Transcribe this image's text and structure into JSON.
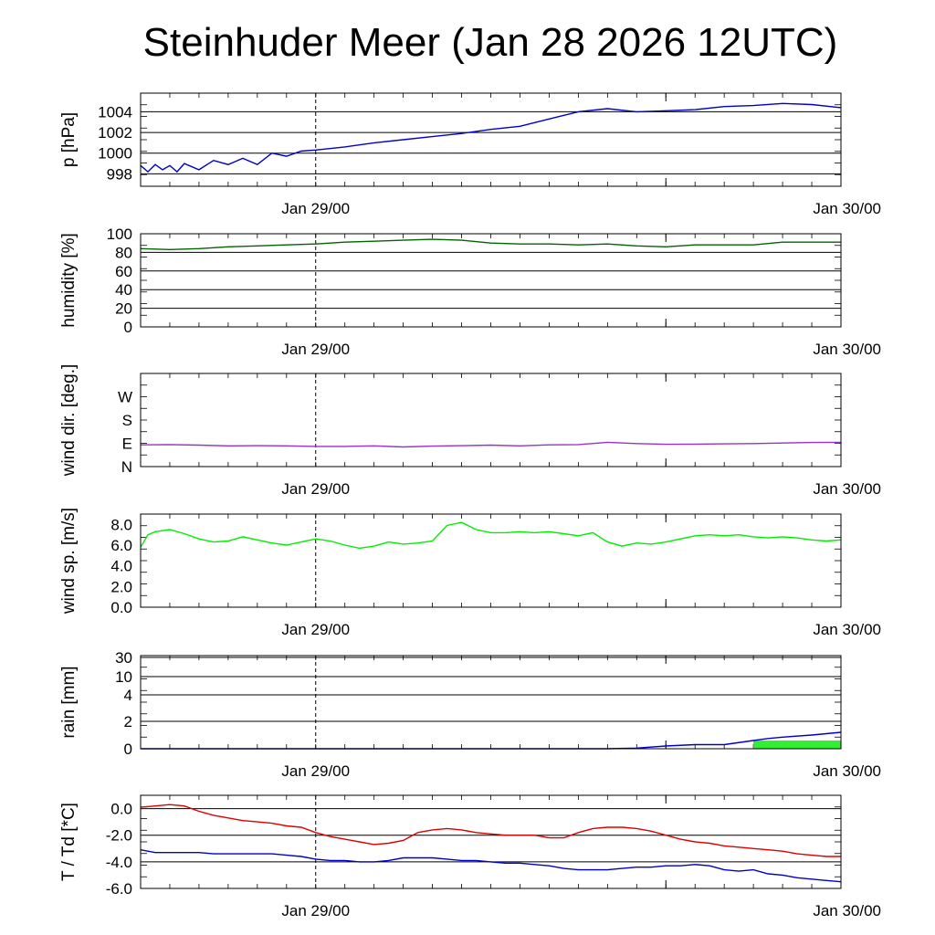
{
  "title": "Steinhuder Meer (Jan 28 2026 12UTC)",
  "chart_data": [
    {
      "type": "line",
      "ylabel": "p [hPa]",
      "yticks": [
        998,
        1000,
        1002,
        1004
      ],
      "ylim": [
        996.8,
        1005.8
      ],
      "hgrid": [
        998,
        1000,
        1002,
        1004
      ],
      "xticklabels": [
        "Jan 29/00",
        "Jan 30/00"
      ],
      "x_hours": [
        0,
        0.5,
        1,
        1.5,
        2,
        2.5,
        3,
        4,
        5,
        6,
        7,
        8,
        9,
        10,
        11,
        12,
        14,
        16,
        18,
        20,
        22,
        24,
        26,
        28,
        30,
        32,
        34,
        36,
        38,
        40,
        42,
        44,
        46,
        48
      ],
      "series": [
        {
          "color": "#0000cc",
          "values": [
            998.8,
            998.2,
            998.9,
            998.4,
            998.8,
            998.2,
            999.0,
            998.4,
            999.3,
            998.9,
            999.5,
            998.9,
            1000.0,
            999.7,
            1000.2,
            1000.3,
            1000.6,
            1001.0,
            1001.3,
            1001.6,
            1001.9,
            1002.3,
            1002.6,
            1003.3,
            1004.0,
            1004.3,
            1004.0,
            1004.1,
            1004.2,
            1004.5,
            1004.6,
            1004.8,
            1004.7,
            1004.4
          ]
        }
      ]
    },
    {
      "type": "line",
      "ylabel": "humidity [%]",
      "yticks": [
        0,
        20,
        40,
        60,
        80,
        100
      ],
      "ylim": [
        0,
        100
      ],
      "hgrid": [
        0,
        20,
        40,
        60,
        80,
        100
      ],
      "xticklabels": [
        "Jan 29/00",
        "Jan 30/00"
      ],
      "x_hours": [
        0,
        2,
        4,
        6,
        8,
        10,
        12,
        14,
        16,
        18,
        20,
        22,
        24,
        26,
        28,
        30,
        32,
        34,
        36,
        38,
        40,
        42,
        44,
        46,
        48
      ],
      "series": [
        {
          "color": "#006400",
          "values": [
            84,
            83,
            84,
            86,
            87,
            88,
            89,
            91,
            92,
            93,
            94,
            93,
            90,
            89,
            89,
            88,
            89,
            87,
            86,
            88,
            88,
            88,
            91,
            91,
            91
          ]
        }
      ]
    },
    {
      "type": "line",
      "ylabel": "wind dir. [deg.]",
      "yticks": [
        "N",
        "E",
        "S",
        "W"
      ],
      "ytick_values": [
        0,
        90,
        180,
        270
      ],
      "ylim": [
        0,
        360
      ],
      "hgrid": [],
      "xticklabels": [
        "Jan 29/00",
        "Jan 30/00"
      ],
      "x_hours": [
        0,
        2,
        4,
        6,
        8,
        10,
        12,
        14,
        16,
        18,
        20,
        22,
        24,
        26,
        28,
        30,
        32,
        34,
        36,
        38,
        40,
        42,
        44,
        46,
        48
      ],
      "series": [
        {
          "color": "#9932cc",
          "values": [
            84,
            85,
            83,
            80,
            81,
            80,
            78,
            78,
            80,
            76,
            79,
            81,
            83,
            80,
            84,
            85,
            94,
            89,
            86,
            87,
            88,
            89,
            91,
            93,
            94
          ]
        }
      ]
    },
    {
      "type": "line",
      "ylabel": "wind sp. [m/s]",
      "yticks": [
        "0.0",
        "2.0",
        "4.0",
        "6.0",
        "8.0"
      ],
      "ytick_values": [
        0,
        2,
        4,
        6,
        8
      ],
      "ylim": [
        0,
        9
      ],
      "hgrid": [],
      "xticklabels": [
        "Jan 29/00",
        "Jan 30/00"
      ],
      "x_hours": [
        0,
        0.5,
        1,
        2,
        3,
        4,
        5,
        6,
        7,
        8,
        9,
        10,
        11,
        12,
        13,
        14,
        15,
        16,
        17,
        18,
        19,
        20,
        21,
        22,
        23,
        24,
        25,
        26,
        27,
        28,
        29,
        30,
        31,
        32,
        33,
        34,
        35,
        36,
        37,
        38,
        39,
        40,
        41,
        42,
        43,
        44,
        45,
        46,
        47,
        48
      ],
      "series": [
        {
          "color": "#00ee00",
          "values": [
            5.8,
            7.0,
            7.3,
            7.5,
            7.1,
            6.6,
            6.3,
            6.4,
            6.8,
            6.5,
            6.2,
            6.0,
            6.3,
            6.6,
            6.4,
            6.0,
            5.7,
            5.9,
            6.3,
            6.1,
            6.2,
            6.4,
            7.9,
            8.2,
            7.5,
            7.2,
            7.2,
            7.3,
            7.2,
            7.3,
            7.1,
            6.9,
            7.2,
            6.3,
            5.9,
            6.2,
            6.1,
            6.3,
            6.6,
            6.9,
            7.0,
            6.9,
            7.0,
            6.8,
            6.7,
            6.8,
            6.7,
            6.5,
            6.4,
            6.5
          ]
        }
      ]
    },
    {
      "type": "area",
      "ylabel": "rain [mm]",
      "yticks": [
        "0",
        "2",
        "4",
        "10",
        "30"
      ],
      "ytick_values": [
        0,
        2,
        4,
        10,
        30
      ],
      "ylim": [
        0,
        30
      ],
      "scale": "custom",
      "hgrid": [
        0,
        2,
        4,
        10,
        30
      ],
      "xticklabels": [
        "Jan 29/00",
        "Jan 30/00"
      ],
      "bars": {
        "color": "#33ee33",
        "x_from": 42,
        "x_to": 48,
        "value": 0.6
      },
      "x_hours": [
        0,
        32,
        34,
        36,
        38,
        40,
        42,
        43,
        44,
        46,
        48
      ],
      "series": [
        {
          "color": "#0000cc",
          "values": [
            0,
            0,
            0.05,
            0.2,
            0.3,
            0.3,
            0.6,
            0.75,
            0.85,
            1.0,
            1.2
          ]
        }
      ]
    },
    {
      "type": "line",
      "ylabel": "T / Td [*C]",
      "yticks": [
        "-6.0",
        "-4.0",
        "-2.0",
        "0.0"
      ],
      "ytick_values": [
        -6,
        -4,
        -2,
        0
      ],
      "ylim": [
        -6.0,
        1.0
      ],
      "hgrid": [
        -6,
        -4,
        -2,
        0
      ],
      "xticklabels": [
        "Jan 29/00",
        "Jan 30/00"
      ],
      "x_hours": [
        0,
        1,
        2,
        3,
        4,
        5,
        6,
        7,
        8,
        9,
        10,
        11,
        12,
        13,
        14,
        15,
        16,
        17,
        18,
        19,
        20,
        21,
        22,
        23,
        24,
        25,
        26,
        27,
        28,
        29,
        30,
        31,
        32,
        33,
        34,
        35,
        36,
        37,
        38,
        39,
        40,
        41,
        42,
        43,
        44,
        45,
        46,
        47,
        48
      ],
      "series": [
        {
          "name": "T",
          "color": "#dd0000",
          "values": [
            0.1,
            0.2,
            0.3,
            0.2,
            -0.2,
            -0.5,
            -0.7,
            -0.9,
            -1.0,
            -1.1,
            -1.3,
            -1.4,
            -1.8,
            -2.1,
            -2.3,
            -2.5,
            -2.7,
            -2.6,
            -2.4,
            -1.8,
            -1.6,
            -1.5,
            -1.6,
            -1.8,
            -1.9,
            -2.0,
            -2.0,
            -2.0,
            -2.2,
            -2.2,
            -1.8,
            -1.5,
            -1.4,
            -1.4,
            -1.5,
            -1.7,
            -2.0,
            -2.3,
            -2.5,
            -2.6,
            -2.8,
            -2.9,
            -3.0,
            -3.1,
            -3.2,
            -3.4,
            -3.5,
            -3.6,
            -3.6
          ]
        },
        {
          "name": "Td",
          "color": "#0000cc",
          "values": [
            -3.1,
            -3.3,
            -3.3,
            -3.3,
            -3.3,
            -3.4,
            -3.4,
            -3.4,
            -3.4,
            -3.4,
            -3.5,
            -3.6,
            -3.8,
            -3.9,
            -3.9,
            -4.0,
            -4.0,
            -3.9,
            -3.7,
            -3.7,
            -3.7,
            -3.8,
            -3.9,
            -3.9,
            -4.0,
            -4.1,
            -4.1,
            -4.2,
            -4.3,
            -4.5,
            -4.6,
            -4.6,
            -4.6,
            -4.5,
            -4.4,
            -4.4,
            -4.3,
            -4.3,
            -4.2,
            -4.3,
            -4.6,
            -4.7,
            -4.6,
            -4.9,
            -5.0,
            -5.2,
            -5.3,
            -5.4,
            -5.5
          ]
        }
      ]
    }
  ]
}
